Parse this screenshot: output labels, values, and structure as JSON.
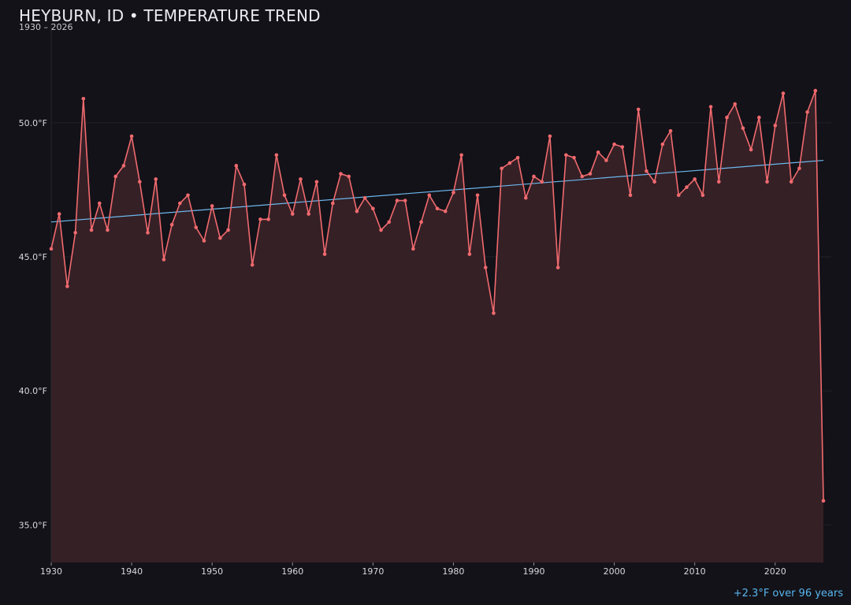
{
  "header": {
    "title": "HEYBURN, ID • TEMPERATURE TREND",
    "subtitle": "1930 – 2026"
  },
  "footnote": "+2.3°F over 96 years",
  "colors": {
    "background": "#131218",
    "line": "#f06a6e",
    "area": "#352026",
    "trend": "#6cb8ee",
    "grid": "#232129"
  },
  "chart_data": {
    "type": "line",
    "title": "HEYBURN, ID • TEMPERATURE TREND",
    "subtitle": "1930 – 2026",
    "xlabel": "",
    "ylabel": "",
    "xlim": [
      1930,
      2026
    ],
    "ylim": [
      33.6,
      53.7
    ],
    "grid": true,
    "x_ticks": [
      1930,
      1940,
      1950,
      1960,
      1970,
      1980,
      1990,
      2000,
      2010,
      2020
    ],
    "y_ticks": [
      {
        "value": 35,
        "label": "35.0°F"
      },
      {
        "value": 40,
        "label": "40.0°F"
      },
      {
        "value": 45,
        "label": "45.0°F"
      },
      {
        "value": 50,
        "label": "50.0°F"
      }
    ],
    "x": [
      1930,
      1931,
      1932,
      1933,
      1934,
      1935,
      1936,
      1937,
      1938,
      1939,
      1940,
      1941,
      1942,
      1943,
      1944,
      1945,
      1946,
      1947,
      1948,
      1949,
      1950,
      1951,
      1952,
      1953,
      1954,
      1955,
      1956,
      1957,
      1958,
      1959,
      1960,
      1961,
      1962,
      1963,
      1964,
      1965,
      1966,
      1967,
      1968,
      1969,
      1970,
      1971,
      1972,
      1973,
      1974,
      1975,
      1976,
      1977,
      1978,
      1979,
      1980,
      1981,
      1982,
      1983,
      1984,
      1985,
      1986,
      1987,
      1988,
      1989,
      1990,
      1991,
      1992,
      1993,
      1994,
      1995,
      1996,
      1997,
      1998,
      1999,
      2000,
      2001,
      2002,
      2003,
      2004,
      2005,
      2006,
      2007,
      2008,
      2009,
      2010,
      2011,
      2012,
      2013,
      2014,
      2015,
      2016,
      2017,
      2018,
      2019,
      2020,
      2021,
      2022,
      2023,
      2024,
      2025,
      2026
    ],
    "series": [
      {
        "values": [
          45.3,
          46.6,
          43.9,
          45.9,
          50.9,
          46.0,
          47.0,
          46.0,
          48.0,
          48.4,
          49.5,
          47.8,
          45.9,
          47.9,
          44.9,
          46.2,
          47.0,
          47.3,
          46.1,
          45.6,
          46.9,
          45.7,
          46.0,
          48.4,
          47.7,
          44.7,
          46.4,
          46.4,
          48.8,
          47.3,
          46.6,
          47.9,
          46.6,
          47.8,
          45.1,
          47.0,
          48.1,
          48.0,
          46.7,
          47.2,
          46.8,
          46.0,
          46.3,
          47.1,
          47.1,
          45.3,
          46.3,
          47.3,
          46.8,
          46.7,
          47.4,
          48.8,
          45.1,
          47.3,
          44.6,
          42.9,
          48.3,
          48.5,
          48.7,
          47.2,
          48.0,
          47.8,
          49.5,
          44.6,
          48.8,
          48.7,
          48.0,
          48.1,
          48.9,
          48.6,
          49.2,
          49.1,
          47.3,
          50.5,
          48.2,
          47.8,
          49.2,
          49.7,
          47.3,
          47.6,
          47.9,
          47.3,
          50.6,
          47.8,
          50.2,
          50.7,
          49.8,
          49.0,
          50.2,
          47.8,
          49.9,
          51.1,
          47.8,
          48.3,
          50.4,
          51.2,
          35.9
        ]
      }
    ],
    "trend": {
      "start": 46.3,
      "end": 48.6
    }
  }
}
